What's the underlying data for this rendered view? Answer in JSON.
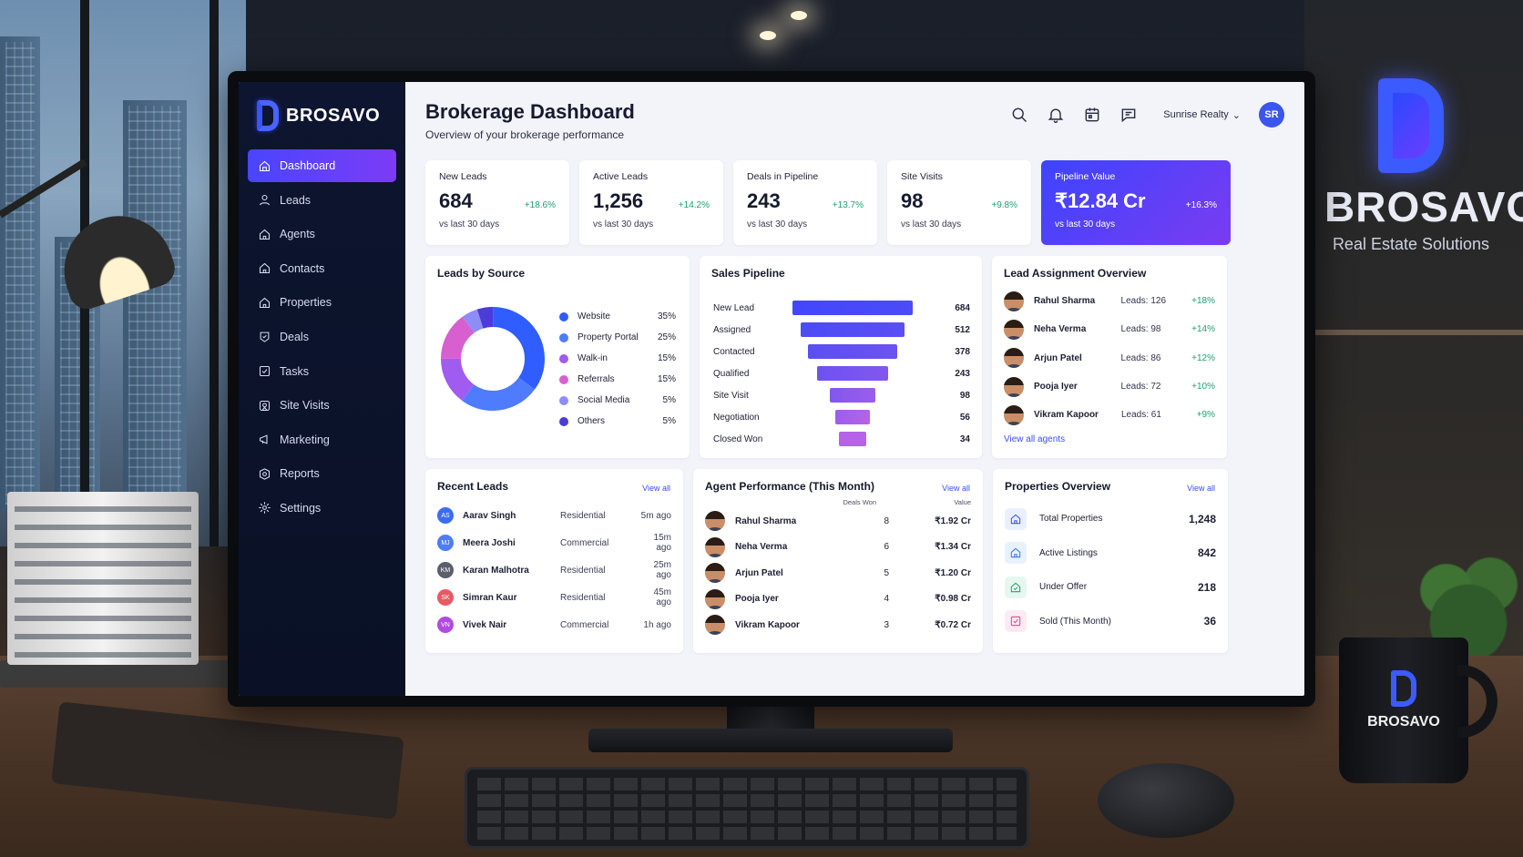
{
  "brand": {
    "name": "BROSAVO"
  },
  "wall_logo": {
    "name": "BROSAVO",
    "tagline": "Real Estate Solutions"
  },
  "mug": {
    "name": "BROSAVO"
  },
  "sidebar": {
    "items": [
      {
        "label": "Dashboard",
        "icon": "home-icon",
        "active": true
      },
      {
        "label": "Leads",
        "icon": "user-icon"
      },
      {
        "label": "Agents",
        "icon": "house-icon"
      },
      {
        "label": "Contacts",
        "icon": "house-icon"
      },
      {
        "label": "Properties",
        "icon": "house-icon"
      },
      {
        "label": "Deals",
        "icon": "tag-icon"
      },
      {
        "label": "Tasks",
        "icon": "checkbox-icon"
      },
      {
        "label": "Site Visits",
        "icon": "map-pin-icon"
      },
      {
        "label": "Marketing",
        "icon": "megaphone-icon"
      },
      {
        "label": "Reports",
        "icon": "target-icon"
      },
      {
        "label": "Settings",
        "icon": "gear-icon"
      }
    ]
  },
  "header": {
    "title": "Brokerage Dashboard",
    "subtitle": "Overview of your brokerage performance",
    "org": "Sunrise Realty",
    "avatar_initials": "SR",
    "icons": [
      "search-icon",
      "bell-icon",
      "calendar-icon",
      "message-icon"
    ]
  },
  "kpis": [
    {
      "label": "New Leads",
      "value": "684",
      "change": "+18.6%",
      "sub": "vs last 30 days"
    },
    {
      "label": "Active Leads",
      "value": "1,256",
      "change": "+14.2%",
      "sub": "vs last 30 days"
    },
    {
      "label": "Deals in Pipeline",
      "value": "243",
      "change": "+13.7%",
      "sub": "vs last 30 days"
    },
    {
      "label": "Site Visits",
      "value": "98",
      "change": "+9.8%",
      "sub": "vs last 30 days"
    },
    {
      "label": "Pipeline Value",
      "value": "₹12.84 Cr",
      "change": "+16.3%",
      "sub": "vs last 30 days"
    }
  ],
  "leads_by_source": {
    "title": "Leads by Source",
    "items": [
      {
        "label": "Website",
        "percent": "35%",
        "value": 35,
        "color": "#2f5dff"
      },
      {
        "label": "Property Portal",
        "percent": "25%",
        "value": 25,
        "color": "#4e7bff"
      },
      {
        "label": "Walk-in",
        "percent": "15%",
        "value": 15,
        "color": "#a05cf0"
      },
      {
        "label": "Referrals",
        "percent": "15%",
        "value": 15,
        "color": "#d85fd0"
      },
      {
        "label": "Social Media",
        "percent": "5%",
        "value": 5,
        "color": "#8e8cf7"
      },
      {
        "label": "Others",
        "percent": "5%",
        "value": 5,
        "color": "#4b3bd9"
      }
    ]
  },
  "sales_pipeline": {
    "title": "Sales Pipeline",
    "stages": [
      {
        "label": "New Lead",
        "value": 684,
        "display": "684"
      },
      {
        "label": "Assigned",
        "value": 512,
        "display": "512"
      },
      {
        "label": "Contacted",
        "value": 378,
        "display": "378"
      },
      {
        "label": "Qualified",
        "value": 243,
        "display": "243"
      },
      {
        "label": "Site Visit",
        "value": 98,
        "display": "98"
      },
      {
        "label": "Negotiation",
        "value": 56,
        "display": "56"
      },
      {
        "label": "Closed Won",
        "value": 34,
        "display": "34"
      }
    ]
  },
  "lead_assignment": {
    "title": "Lead Assignment Overview",
    "agents": [
      {
        "name": "Rahul Sharma",
        "leads": "Leads: 126",
        "change": "+18%"
      },
      {
        "name": "Neha Verma",
        "leads": "Leads: 98",
        "change": "+14%"
      },
      {
        "name": "Arjun Patel",
        "leads": "Leads: 86",
        "change": "+12%"
      },
      {
        "name": "Pooja Iyer",
        "leads": "Leads: 72",
        "change": "+10%"
      },
      {
        "name": "Vikram Kapoor",
        "leads": "Leads: 61",
        "change": "+9%"
      }
    ],
    "link": "View all agents"
  },
  "recent_leads": {
    "title": "Recent Leads",
    "link": "View all",
    "rows": [
      {
        "initials": "AS",
        "name": "Aarav Singh",
        "type": "Residential",
        "time": "5m ago",
        "color": "#3c6cf5"
      },
      {
        "initials": "MJ",
        "name": "Meera Joshi",
        "type": "Commercial",
        "time": "15m ago",
        "color": "#4f7cf7"
      },
      {
        "initials": "KM",
        "name": "Karan Malhotra",
        "type": "Residential",
        "time": "25m ago",
        "color": "#5b5f6c"
      },
      {
        "initials": "SK",
        "name": "Simran Kaur",
        "type": "Residential",
        "time": "45m ago",
        "color": "#e65a64"
      },
      {
        "initials": "VN",
        "name": "Vivek Nair",
        "type": "Commercial",
        "time": "1h ago",
        "color": "#b14be0"
      }
    ]
  },
  "agent_performance": {
    "title": "Agent Performance (This Month)",
    "link": "View all",
    "col_deals": "Deals Won",
    "col_value": "Value",
    "rows": [
      {
        "name": "Rahul Sharma",
        "deals": "8",
        "value": "₹1.92 Cr"
      },
      {
        "name": "Neha Verma",
        "deals": "6",
        "value": "₹1.34 Cr"
      },
      {
        "name": "Arjun Patel",
        "deals": "5",
        "value": "₹1.20 Cr"
      },
      {
        "name": "Pooja Iyer",
        "deals": "4",
        "value": "₹0.98 Cr"
      },
      {
        "name": "Vikram Kapoor",
        "deals": "3",
        "value": "₹0.72 Cr"
      }
    ]
  },
  "properties_overview": {
    "title": "Properties Overview",
    "link": "View all",
    "rows": [
      {
        "label": "Total Properties",
        "value": "1,248",
        "icon": "building-icon",
        "color": "#3b55ef",
        "bg": "#eaefff"
      },
      {
        "label": "Active Listings",
        "value": "842",
        "icon": "house-icon",
        "color": "#3b7bef",
        "bg": "#e8f1ff"
      },
      {
        "label": "Under Offer",
        "value": "218",
        "icon": "document-check-icon",
        "color": "#23a66b",
        "bg": "#e6f7ef"
      },
      {
        "label": "Sold (This Month)",
        "value": "36",
        "icon": "check-square-icon",
        "color": "#e2478f",
        "bg": "#fdeaf3"
      }
    ]
  }
}
